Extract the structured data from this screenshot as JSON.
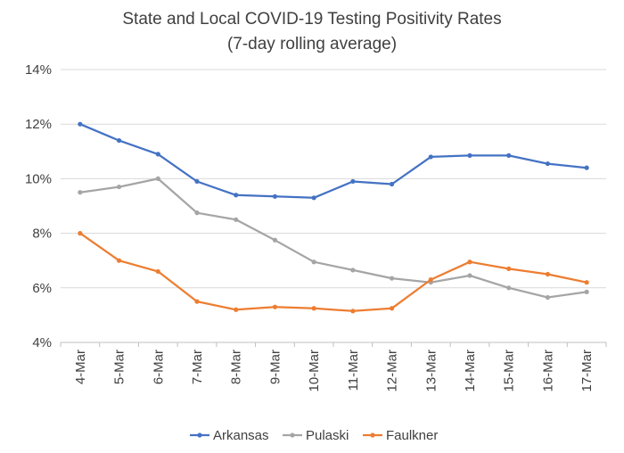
{
  "chart_data": {
    "type": "line",
    "title": "State and Local COVID-19 Testing Positivity Rates",
    "subtitle": "(7-day rolling average)",
    "xlabel": "",
    "ylabel": "",
    "ylim": [
      0.04,
      0.14
    ],
    "yticks": [
      0.04,
      0.06,
      0.08,
      0.1,
      0.12,
      0.14
    ],
    "ytick_labels": [
      "4%",
      "6%",
      "8%",
      "10%",
      "12%",
      "14%"
    ],
    "grid": true,
    "legend_position": "bottom",
    "categories": [
      "4-Mar",
      "5-Mar",
      "6-Mar",
      "7-Mar",
      "8-Mar",
      "9-Mar",
      "10-Mar",
      "11-Mar",
      "12-Mar",
      "13-Mar",
      "14-Mar",
      "15-Mar",
      "16-Mar",
      "17-Mar"
    ],
    "series": [
      {
        "name": "Arkansas",
        "color": "#4472c4",
        "values": [
          0.12,
          0.114,
          0.109,
          0.099,
          0.094,
          0.0935,
          0.093,
          0.099,
          0.098,
          0.108,
          0.1085,
          0.1085,
          0.1055,
          0.104
        ]
      },
      {
        "name": "Pulaski",
        "color": "#a5a5a5",
        "values": [
          0.095,
          0.097,
          0.1,
          0.0875,
          0.085,
          0.0775,
          0.0695,
          0.0665,
          0.0635,
          0.062,
          0.0645,
          0.06,
          0.0565,
          0.0585
        ]
      },
      {
        "name": "Faulkner",
        "color": "#ed7d31",
        "values": [
          0.08,
          0.07,
          0.066,
          0.055,
          0.052,
          0.053,
          0.0525,
          0.0515,
          0.0525,
          0.063,
          0.0695,
          0.067,
          0.065,
          0.062
        ]
      }
    ]
  }
}
